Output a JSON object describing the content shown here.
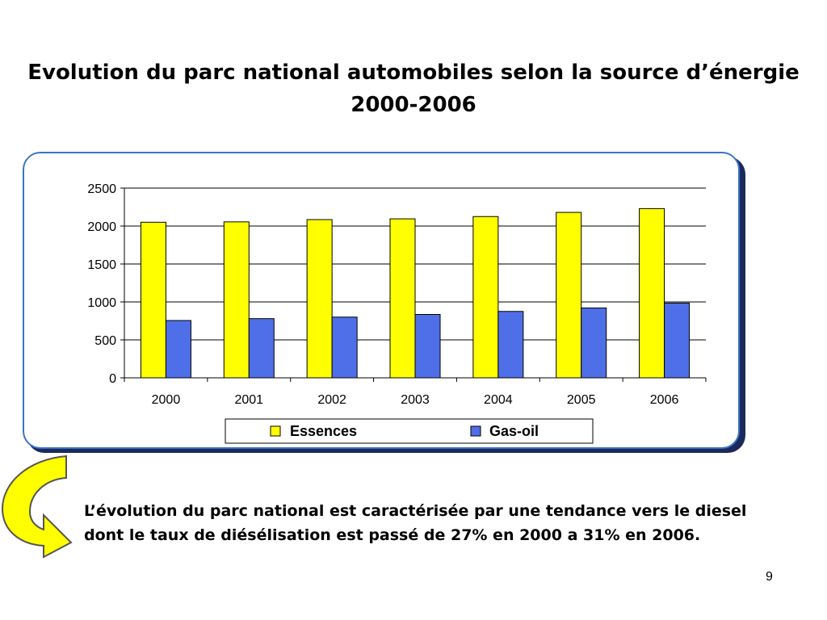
{
  "slide": {
    "title_line1": "Evolution du parc national automobiles selon la source d’énergie",
    "title_line2": "2000-2006",
    "body_text": "L’évolution du parc national est caractérisée par une tendance vers le diesel dont le taux de diésélisation est passé de 27% en 2000 a 31% en 2006.",
    "page_number": "9"
  },
  "colors": {
    "essences": "#ffff00",
    "gas_oil": "#4f6fe8",
    "frame_border": "#3b74c6",
    "arrow_fill": "#ffff00"
  },
  "chart_data": {
    "type": "bar",
    "categories": [
      "2000",
      "2001",
      "2002",
      "2003",
      "2004",
      "2005",
      "2006"
    ],
    "series": [
      {
        "name": "Essences",
        "values": [
          2050,
          2055,
          2085,
          2095,
          2125,
          2180,
          2230
        ]
      },
      {
        "name": "Gas-oil",
        "values": [
          755,
          780,
          800,
          835,
          875,
          920,
          985
        ]
      }
    ],
    "ylim": [
      0,
      2500
    ],
    "yticks": [
      "0",
      "500",
      "1000",
      "1500",
      "2000",
      "2500"
    ],
    "grid": true,
    "legend_position": "bottom"
  }
}
